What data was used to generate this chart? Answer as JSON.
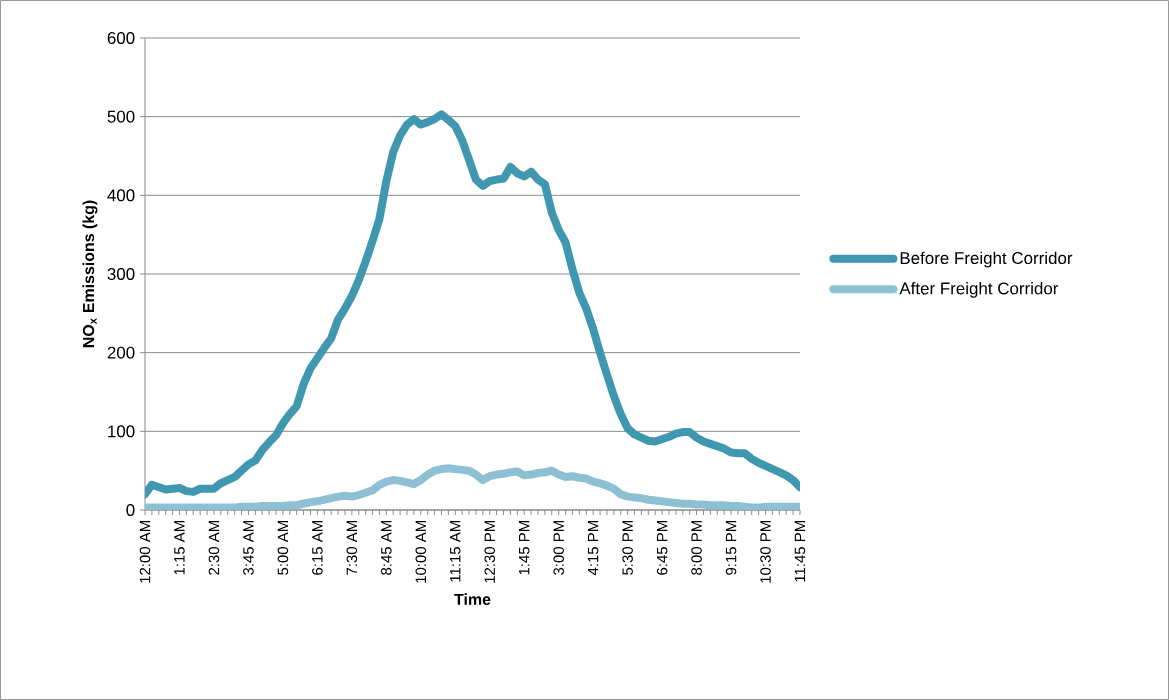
{
  "chart_data": {
    "type": "line",
    "xlabel": "Time",
    "ylabel": "NO$_{x}$ Emissions (kg)",
    "categories": [
      "12:00 AM",
      null,
      null,
      null,
      null,
      "1:15 AM",
      null,
      null,
      null,
      null,
      "2:30 AM",
      null,
      null,
      null,
      null,
      "3:45 AM",
      null,
      null,
      null,
      null,
      "5:00 AM",
      null,
      null,
      null,
      null,
      "6:15 AM",
      null,
      null,
      null,
      null,
      "7:30 AM",
      null,
      null,
      null,
      null,
      "8:45 AM",
      null,
      null,
      null,
      null,
      "10:00 AM",
      null,
      null,
      null,
      null,
      "11:15 AM",
      null,
      null,
      null,
      null,
      "12:30 PM",
      null,
      null,
      null,
      null,
      "1:45 PM",
      null,
      null,
      null,
      null,
      "3:00 PM",
      null,
      null,
      null,
      null,
      "4:15 PM",
      null,
      null,
      null,
      null,
      "5:30 PM",
      null,
      null,
      null,
      null,
      "6:45 PM",
      null,
      null,
      null,
      null,
      "8:00 PM",
      null,
      null,
      null,
      null,
      "9:15 PM",
      null,
      null,
      null,
      null,
      "10:30 PM",
      null,
      null,
      null,
      null,
      "11:45 PM"
    ],
    "series": [
      {
        "name": "Before Freight Corridor",
        "color": "#4097b0",
        "values": [
          20,
          32,
          29,
          26,
          27,
          28,
          24,
          23,
          27,
          27,
          27,
          34,
          38,
          42,
          50,
          58,
          63,
          76,
          86,
          95,
          110,
          122,
          132,
          160,
          180,
          193,
          206,
          218,
          242,
          256,
          272,
          292,
          316,
          342,
          370,
          418,
          455,
          476,
          490,
          497,
          490,
          493,
          497,
          503,
          496,
          488,
          470,
          445,
          420,
          412,
          418,
          420,
          421,
          436,
          428,
          424,
          430,
          420,
          414,
          378,
          356,
          340,
          306,
          276,
          256,
          230,
          200,
          172,
          145,
          122,
          104,
          96,
          92,
          88,
          87,
          90,
          93,
          97,
          99,
          99,
          92,
          87,
          84,
          81,
          78,
          73,
          72,
          72,
          65,
          60,
          56,
          52,
          48,
          44,
          38,
          29
        ]
      },
      {
        "name": "After Freight Corridor",
        "color": "#8ec0d3",
        "values": [
          3,
          3,
          3,
          3,
          3,
          3,
          3,
          3,
          3,
          3,
          3,
          3,
          3,
          3,
          4,
          4,
          4,
          5,
          5,
          5,
          5,
          6,
          6,
          8,
          10,
          11,
          13,
          15,
          17,
          18,
          17,
          19,
          22,
          25,
          32,
          36,
          38,
          37,
          35,
          33,
          38,
          45,
          50,
          52,
          53,
          52,
          51,
          50,
          45,
          38,
          43,
          45,
          46,
          48,
          49,
          44,
          45,
          47,
          48,
          50,
          45,
          42,
          43,
          41,
          40,
          36,
          34,
          31,
          27,
          20,
          17,
          16,
          15,
          13,
          12,
          11,
          10,
          9,
          8,
          8,
          7,
          7,
          6,
          6,
          6,
          5,
          5,
          4,
          3,
          3,
          4,
          4,
          4,
          4,
          4,
          4
        ]
      }
    ],
    "ylim": [
      0,
      600
    ],
    "yticks": [
      0,
      100,
      200,
      300,
      400,
      500,
      600
    ],
    "grid": "y",
    "legend": "right",
    "line_style": "solid"
  }
}
